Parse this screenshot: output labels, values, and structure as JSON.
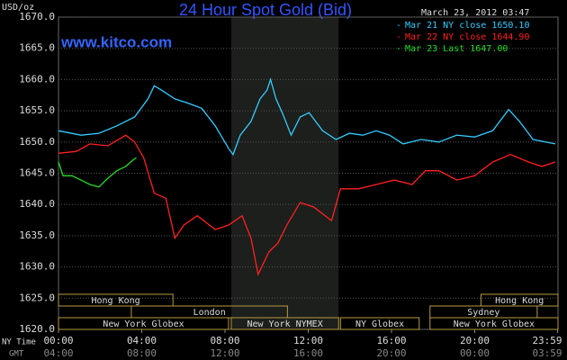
{
  "chart_data": {
    "type": "line",
    "title": "24 Hour Spot Gold (Bid)",
    "unit": "USD/oz",
    "site": "www.kitco.com",
    "timestamp": "March 23, 2012 03:47",
    "x_axis_label": "NY Time",
    "x2_axis_label": "GMT",
    "xlim": [
      0,
      24
    ],
    "ylim": [
      1620,
      1670
    ],
    "xticks": [
      {
        "value": 0,
        "label": "00:00"
      },
      {
        "value": 4,
        "label": "04:00"
      },
      {
        "value": 8,
        "label": "08:00"
      },
      {
        "value": 12,
        "label": "12:00"
      },
      {
        "value": 16,
        "label": "16:00"
      },
      {
        "value": 20,
        "label": "20:00"
      },
      {
        "value": 23.98,
        "label": "23:59"
      }
    ],
    "x2ticks": [
      {
        "value": 0,
        "label": "04:00"
      },
      {
        "value": 4,
        "label": "08:00"
      },
      {
        "value": 8,
        "label": "12:00"
      },
      {
        "value": 12,
        "label": "16:00"
      },
      {
        "value": 16,
        "label": "20:00"
      },
      {
        "value": 20,
        "label": "00:00"
      },
      {
        "value": 23.98,
        "label": "03:59"
      }
    ],
    "yticks": [
      {
        "value": 1620,
        "label": "1620.0"
      },
      {
        "value": 1625,
        "label": "1625.0"
      },
      {
        "value": 1630,
        "label": "1630.0"
      },
      {
        "value": 1635,
        "label": "1635.0"
      },
      {
        "value": 1640,
        "label": "1640.0"
      },
      {
        "value": 1645,
        "label": "1645.0"
      },
      {
        "value": 1650,
        "label": "1650.0"
      },
      {
        "value": 1655,
        "label": "1655.0"
      },
      {
        "value": 1660,
        "label": "1660.0"
      },
      {
        "value": 1665,
        "label": "1665.0"
      },
      {
        "value": 1670,
        "label": "1670.0"
      }
    ],
    "grid": true,
    "series": [
      {
        "name": "Mar 21 NY close 1650.10",
        "color": "#33ccff",
        "x": [
          0,
          1.08,
          1.94,
          2.8,
          3.66,
          4.3,
          4.6,
          4.95,
          5.59,
          6.24,
          6.88,
          7.53,
          8.17,
          8.39,
          8.73,
          9.25,
          9.68,
          10.02,
          10.19,
          10.45,
          10.75,
          11.18,
          11.61,
          12.04,
          12.69,
          13.33,
          13.98,
          14.62,
          15.27,
          15.91,
          16.56,
          17.42,
          18.28,
          19.14,
          20,
          20.86,
          21.63,
          22.15,
          22.8,
          23.87
        ],
        "values": [
          1651.8,
          1651.1,
          1651.4,
          1652.6,
          1654,
          1656.9,
          1659,
          1658.3,
          1656.9,
          1656.2,
          1655.4,
          1652.6,
          1649,
          1648,
          1651.1,
          1653.3,
          1656.9,
          1658.3,
          1660,
          1656.9,
          1654.7,
          1651.1,
          1654,
          1654.7,
          1651.8,
          1650.4,
          1651.4,
          1651.1,
          1651.8,
          1651.1,
          1649.7,
          1650.4,
          1650,
          1651.1,
          1650.8,
          1651.8,
          1655.2,
          1653.3,
          1650.4,
          1649.7
        ]
      },
      {
        "name": "Mar 22 NY close 1644.90",
        "color": "#ff2020",
        "x": [
          0,
          0.86,
          1.51,
          2.37,
          3.23,
          3.66,
          4.09,
          4.6,
          5.16,
          5.59,
          6.02,
          6.67,
          7.53,
          8.17,
          8.82,
          9.25,
          9.59,
          10.11,
          10.54,
          10.97,
          11.61,
          12.26,
          13.12,
          13.55,
          14.41,
          15.27,
          16.13,
          16.99,
          17.63,
          18.28,
          19.14,
          20,
          20.86,
          21.72,
          22.58,
          23.23,
          23.87
        ],
        "values": [
          1648.2,
          1648.5,
          1649.7,
          1649.4,
          1651.1,
          1650,
          1647.5,
          1641.8,
          1641,
          1634.6,
          1636.7,
          1638.2,
          1636,
          1636.7,
          1638.2,
          1634.6,
          1628.8,
          1632.4,
          1633.8,
          1636.7,
          1640.3,
          1639.6,
          1637.4,
          1642.5,
          1642.5,
          1643.2,
          1643.9,
          1643.2,
          1645.4,
          1645.4,
          1643.9,
          1644.6,
          1646.8,
          1648,
          1646.8,
          1646.1,
          1646.8
        ]
      },
      {
        "name": "Mar 23 Last 1647.00",
        "color": "#22dd22",
        "x": [
          0,
          0.22,
          0.65,
          1.08,
          1.51,
          1.94,
          2.37,
          2.8,
          3.23,
          3.57,
          3.74
        ],
        "values": [
          1646.8,
          1644.6,
          1644.6,
          1643.9,
          1643.2,
          1642.8,
          1644.2,
          1645.4,
          1646.1,
          1647.1,
          1647.5
        ]
      }
    ],
    "sessions": [
      [
        {
          "label": "Hong Kong",
          "start": 0,
          "end": 5.5
        },
        {
          "label": "Hong Kong",
          "start": 20.3,
          "end": 24
        }
      ],
      [
        {
          "label": "London",
          "start": 3.5,
          "end": 11
        },
        {
          "label": "Sydney",
          "start": 17.85,
          "end": 23
        }
      ],
      [
        {
          "label": "New York Globex",
          "start": 0,
          "end": 8.17
        },
        {
          "label": "New York NYMEX",
          "start": 8.3,
          "end": 13.46
        },
        {
          "label": "NY Globex",
          "start": 13.55,
          "end": 17.33
        },
        {
          "label": "New York Globex",
          "start": 17.85,
          "end": 24
        }
      ]
    ]
  }
}
